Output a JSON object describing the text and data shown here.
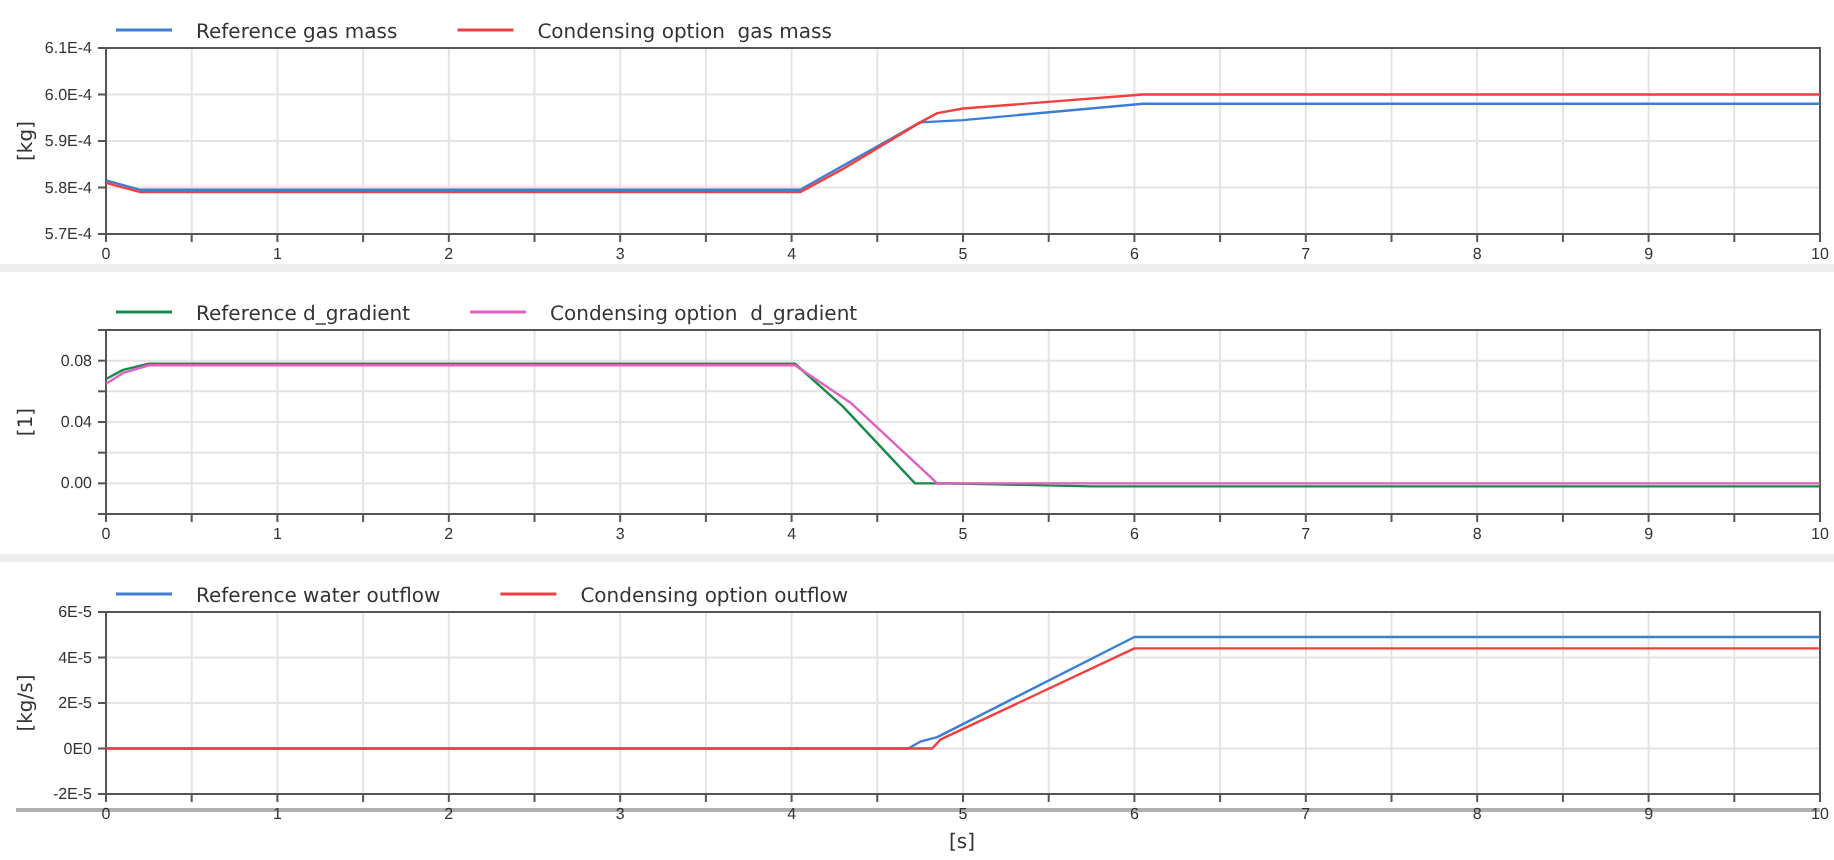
{
  "chart_data": [
    {
      "type": "line",
      "ylabel": "[kg]",
      "xlim": [
        0,
        10
      ],
      "ylim": [
        0.00057,
        0.00061
      ],
      "grid": true,
      "legend": "top left",
      "xticks": [
        0,
        {
          "value": 0.5,
          "label": null
        },
        1,
        {
          "value": 1.5,
          "label": null
        },
        2,
        {
          "value": 2.5,
          "label": null
        },
        3,
        {
          "value": 3.5,
          "label": null
        },
        4,
        {
          "value": 4.5,
          "label": null
        },
        5,
        {
          "value": 5.5,
          "label": null
        },
        6,
        {
          "value": 6.5,
          "label": null
        },
        7,
        {
          "value": 7.5,
          "label": null
        },
        8,
        {
          "value": 8.5,
          "label": null
        },
        9,
        {
          "value": 9.5,
          "label": null
        },
        10
      ],
      "yticks": [
        {
          "value": 0.00057,
          "label": "5.7E-4"
        },
        {
          "value": 0.00058,
          "label": "5.8E-4"
        },
        {
          "value": 0.00059,
          "label": "5.9E-4"
        },
        {
          "value": 0.0006,
          "label": "6.0E-4"
        },
        {
          "value": 0.00061,
          "label": "6.1E-4"
        }
      ],
      "series": [
        {
          "name": "Reference gas mass",
          "color": "#3a7fd5",
          "x": [
            0,
            0.2,
            4.05,
            4.75,
            5.0,
            6.05,
            10
          ],
          "values": [
            0.0005815,
            0.0005795,
            0.0005795,
            0.000594,
            0.0005945,
            0.000598,
            0.000598
          ]
        },
        {
          "name": "Condensing option  gas mass",
          "color": "#f04040",
          "x": [
            0,
            0.2,
            4.05,
            4.3,
            4.75,
            4.85,
            5.0,
            6.05,
            10
          ],
          "values": [
            0.000581,
            0.000579,
            0.000579,
            0.000584,
            0.000594,
            0.000596,
            0.000597,
            0.0006,
            0.0006
          ]
        }
      ]
    },
    {
      "type": "line",
      "ylabel": "[1]",
      "xlim": [
        0,
        10
      ],
      "ylim": [
        -0.02,
        0.1
      ],
      "grid": true,
      "legend": "top left",
      "xticks": [
        0,
        {
          "value": 0.5,
          "label": null
        },
        1,
        {
          "value": 1.5,
          "label": null
        },
        2,
        {
          "value": 2.5,
          "label": null
        },
        3,
        {
          "value": 3.5,
          "label": null
        },
        4,
        {
          "value": 4.5,
          "label": null
        },
        5,
        {
          "value": 5.5,
          "label": null
        },
        6,
        {
          "value": 6.5,
          "label": null
        },
        7,
        {
          "value": 7.5,
          "label": null
        },
        8,
        {
          "value": 8.5,
          "label": null
        },
        9,
        {
          "value": 9.5,
          "label": null
        },
        10
      ],
      "yticks": [
        {
          "value": -0.02,
          "label": null
        },
        {
          "value": 0,
          "label": "0.00"
        },
        {
          "value": 0.02,
          "label": null
        },
        {
          "value": 0.04,
          "label": "0.04"
        },
        {
          "value": 0.06,
          "label": null
        },
        {
          "value": 0.08,
          "label": "0.08"
        },
        {
          "value": 0.1,
          "label": null
        }
      ],
      "series": [
        {
          "name": "Reference d_gradient",
          "color": "#1a8a4a",
          "x": [
            0,
            0.1,
            0.25,
            4.02,
            4.3,
            4.72,
            4.9,
            5.35,
            5.75,
            10
          ],
          "values": [
            0.068,
            0.074,
            0.078,
            0.078,
            0.05,
            0,
            0,
            -0.001,
            -0.002,
            -0.002
          ]
        },
        {
          "name": "Condensing option  d_gradient",
          "color": "#e060c0",
          "x": [
            0,
            0.1,
            0.25,
            4.02,
            4.35,
            4.85,
            10
          ],
          "values": [
            0.065,
            0.072,
            0.077,
            0.077,
            0.052,
            0,
            0
          ]
        }
      ]
    },
    {
      "type": "line",
      "ylabel": "[kg/s]",
      "xlabel": "[s]",
      "xlim": [
        0,
        10
      ],
      "ylim": [
        -2e-05,
        6e-05
      ],
      "grid": true,
      "legend": "top left",
      "xticks": [
        0,
        {
          "value": 0.5,
          "label": null
        },
        1,
        {
          "value": 1.5,
          "label": null
        },
        2,
        {
          "value": 2.5,
          "label": null
        },
        3,
        {
          "value": 3.5,
          "label": null
        },
        4,
        {
          "value": 4.5,
          "label": null
        },
        5,
        {
          "value": 5.5,
          "label": null
        },
        6,
        {
          "value": 6.5,
          "label": null
        },
        7,
        {
          "value": 7.5,
          "label": null
        },
        8,
        {
          "value": 8.5,
          "label": null
        },
        9,
        {
          "value": 9.5,
          "label": null
        },
        10
      ],
      "yticks": [
        {
          "value": -2e-05,
          "label": "-2E-5"
        },
        {
          "value": 0,
          "label": "0E0"
        },
        {
          "value": 2e-05,
          "label": "2E-5"
        },
        {
          "value": 4e-05,
          "label": "4E-5"
        },
        {
          "value": 6e-05,
          "label": "6E-5"
        }
      ],
      "series": [
        {
          "name": "Reference water outflow",
          "color": "#3a7fd5",
          "x": [
            0,
            4.68,
            4.75,
            4.85,
            6,
            10
          ],
          "values": [
            0,
            0,
            3e-06,
            5e-06,
            4.9e-05,
            4.9e-05
          ]
        },
        {
          "name": "Condensing option outflow",
          "color": "#f04040",
          "x": [
            0,
            4.82,
            4.87,
            6,
            10
          ],
          "values": [
            0,
            0,
            4e-06,
            4.4e-05,
            4.4e-05
          ]
        }
      ]
    }
  ]
}
